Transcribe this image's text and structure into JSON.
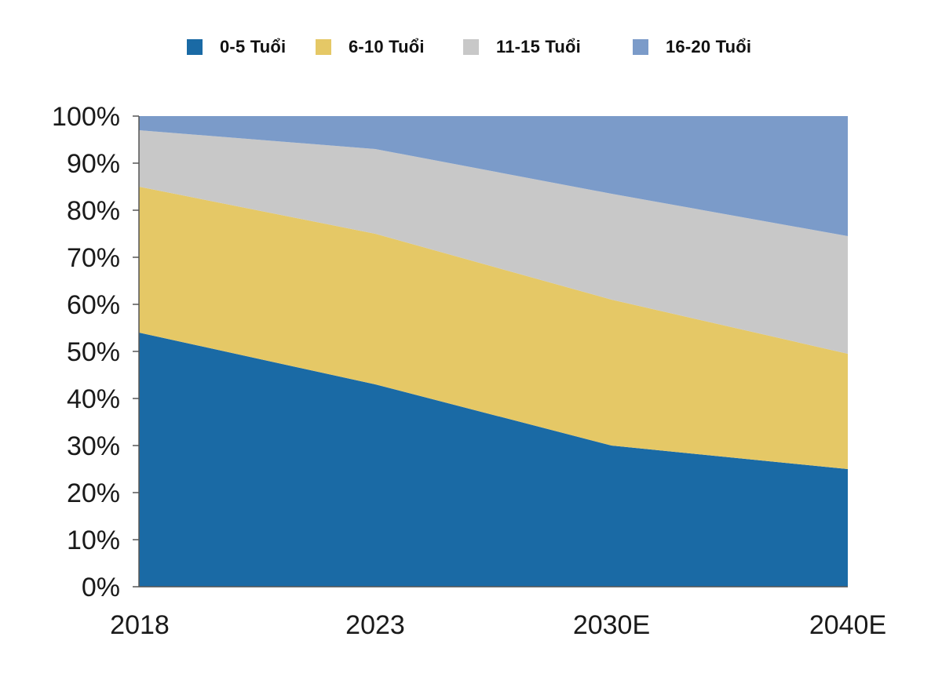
{
  "chart_data": {
    "type": "area",
    "stacked": true,
    "normalized": true,
    "title": "",
    "xlabel": "",
    "ylabel": "",
    "categories": [
      "2018",
      "2023",
      "2030E",
      "2040E"
    ],
    "ylim": [
      0,
      100
    ],
    "yticks": [
      "0%",
      "10%",
      "20%",
      "30%",
      "40%",
      "50%",
      "60%",
      "70%",
      "80%",
      "90%",
      "100%"
    ],
    "grid": false,
    "legend_position": "top-center",
    "series": [
      {
        "name": "0-5 Tuổi",
        "color": "#1a6aa5",
        "values": [
          54,
          43,
          30,
          25
        ]
      },
      {
        "name": "6-10 Tuổi",
        "color": "#e5c866",
        "values": [
          31,
          32,
          31,
          24.5
        ]
      },
      {
        "name": "11-15 Tuổi",
        "color": "#c8c8c8",
        "values": [
          12,
          18,
          22.5,
          25
        ]
      },
      {
        "name": "16-20 Tuổi",
        "color": "#7b9bc9",
        "values": [
          3,
          7,
          16.5,
          25.5
        ]
      }
    ]
  }
}
